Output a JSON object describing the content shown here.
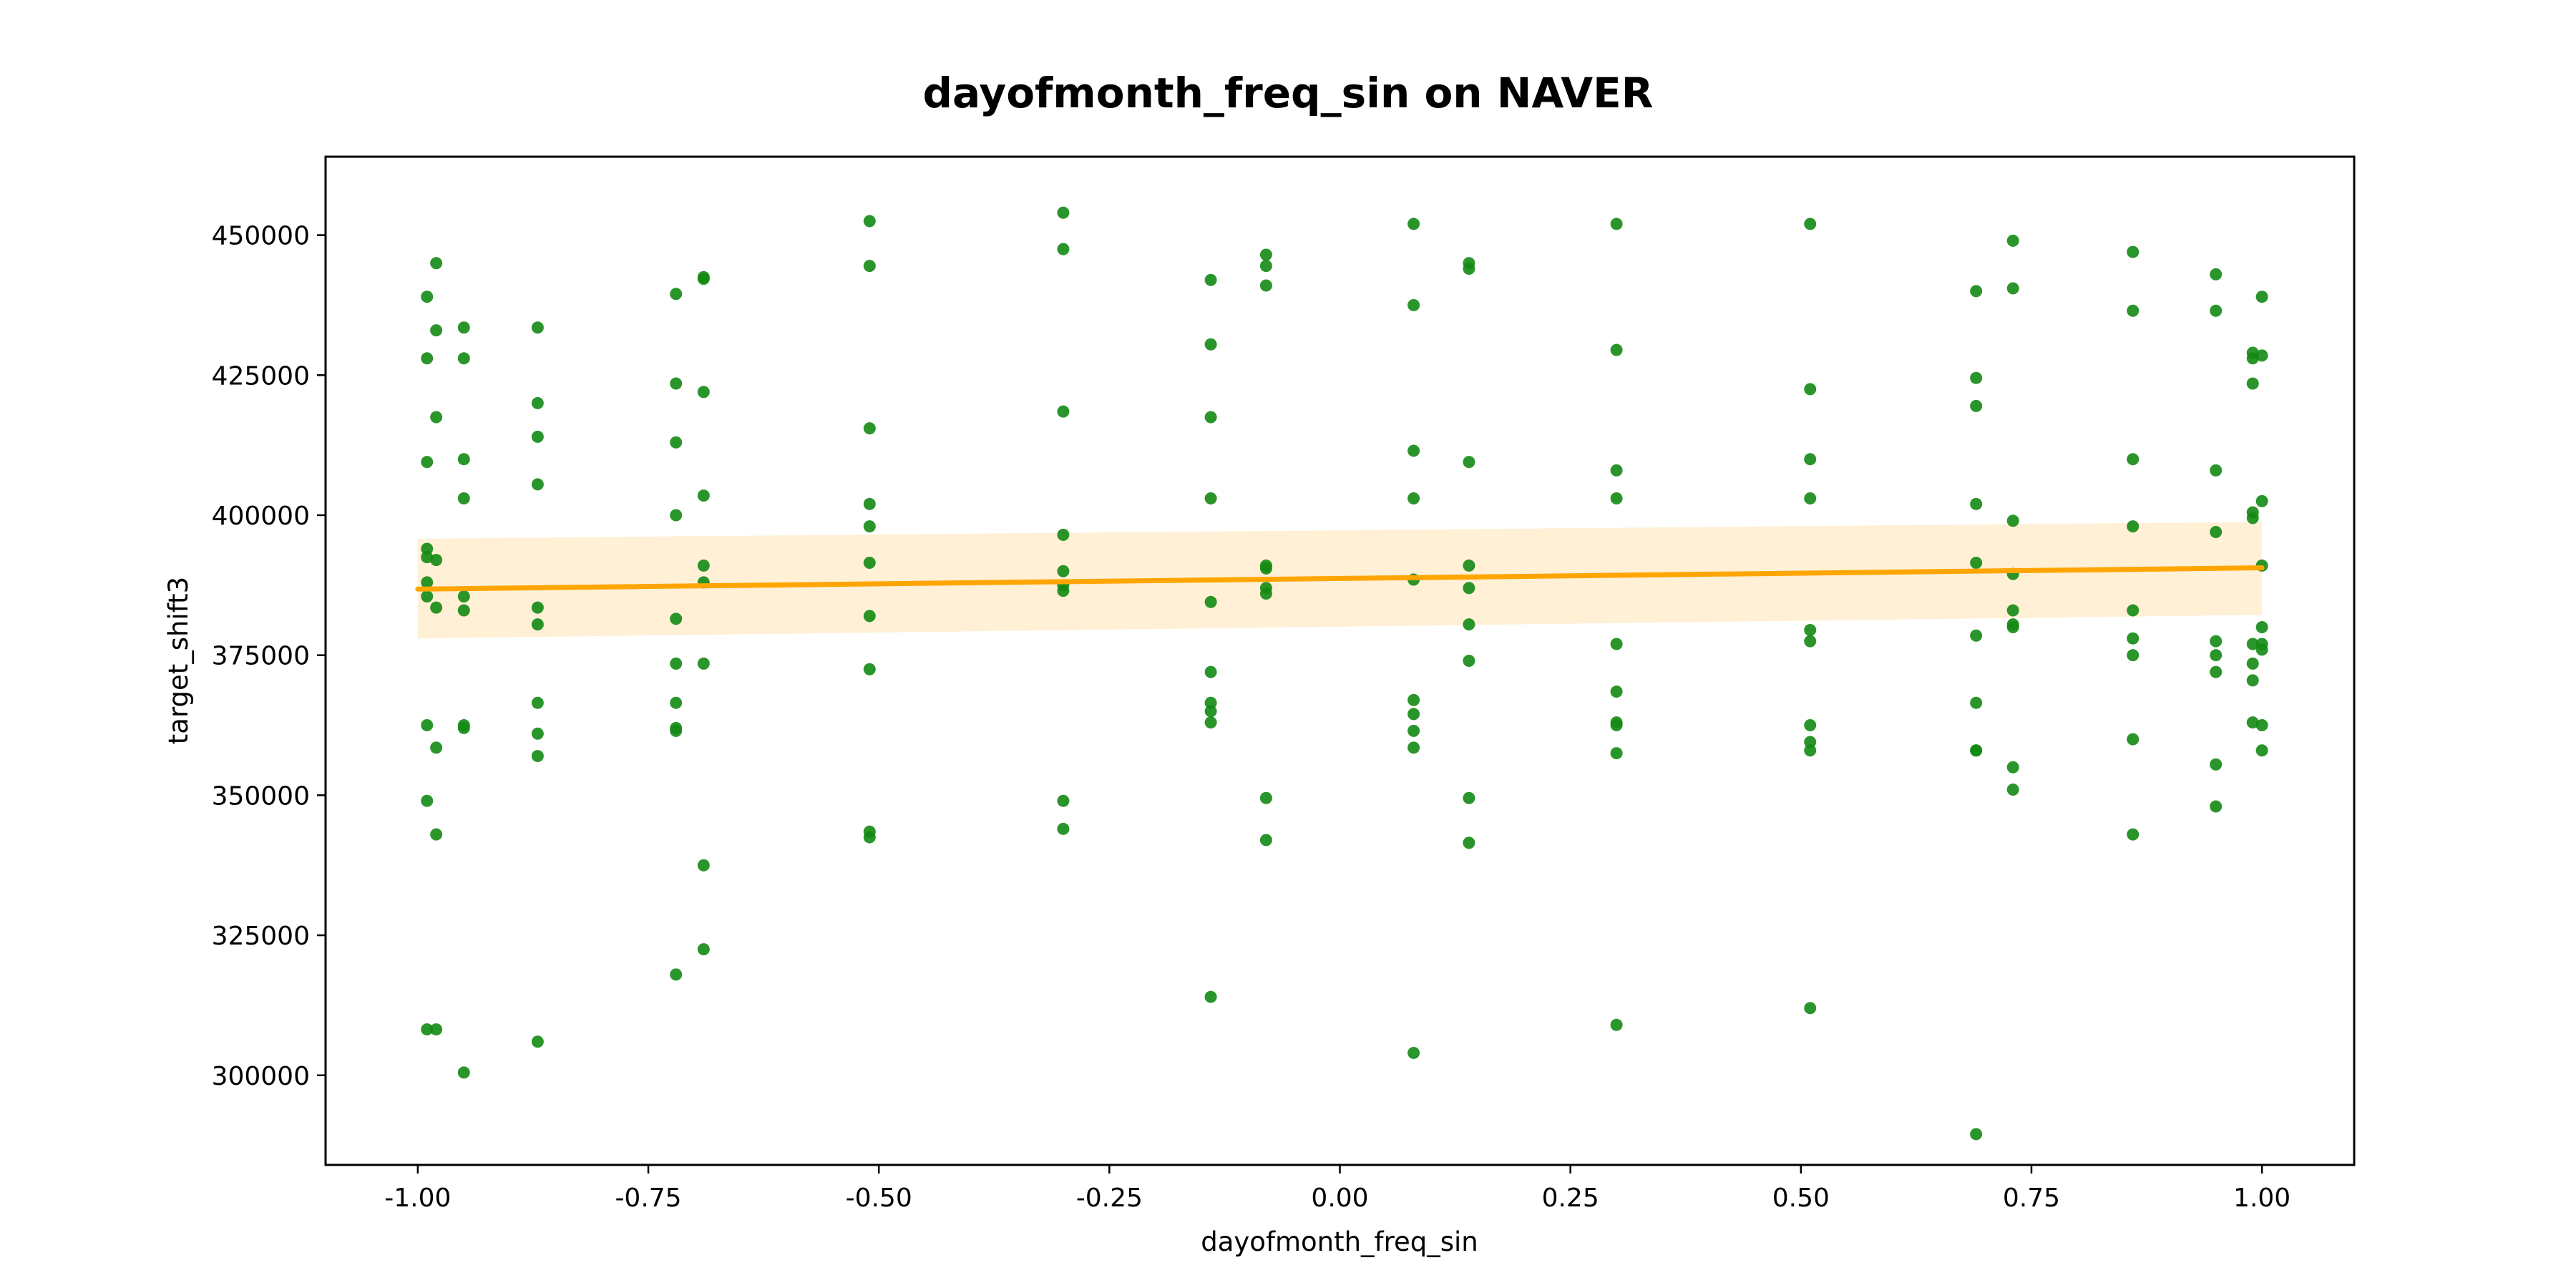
{
  "chart_data": {
    "type": "scatter",
    "title": "dayofmonth_freq_sin on NAVER",
    "xlabel": "dayofmonth_freq_sin",
    "ylabel": "target_shift3",
    "xlim": [
      -1.1,
      1.1
    ],
    "ylim": [
      284000,
      464000
    ],
    "x_ticks": [
      -1.0,
      -0.75,
      -0.5,
      -0.25,
      0.0,
      0.25,
      0.5,
      0.75,
      1.0
    ],
    "x_tick_labels": [
      "-1.00",
      "-0.75",
      "-0.50",
      "-0.25",
      "0.00",
      "0.25",
      "0.50",
      "0.75",
      "1.00"
    ],
    "y_ticks": [
      300000,
      325000,
      350000,
      375000,
      400000,
      425000,
      450000
    ],
    "y_tick_labels": [
      "300000",
      "325000",
      "350000",
      "375000",
      "400000",
      "425000",
      "450000"
    ],
    "grid": false,
    "colors": {
      "points": "#138a13",
      "regression_line": "#ffa500",
      "confidence_band": "#fff0d6"
    },
    "regression": {
      "x": [
        -1.0,
        1.0
      ],
      "y": [
        386800,
        390600
      ],
      "ci_upper": [
        395800,
        398800
      ],
      "ci_lower": [
        378000,
        382200
      ]
    },
    "points": [
      {
        "x": -0.99,
        "y": 439000
      },
      {
        "x": -0.99,
        "y": 428000
      },
      {
        "x": -0.99,
        "y": 409500
      },
      {
        "x": -0.99,
        "y": 394000
      },
      {
        "x": -0.99,
        "y": 392500
      },
      {
        "x": -0.99,
        "y": 388000
      },
      {
        "x": -0.99,
        "y": 385500
      },
      {
        "x": -0.99,
        "y": 362500
      },
      {
        "x": -0.99,
        "y": 349000
      },
      {
        "x": -0.99,
        "y": 308200
      },
      {
        "x": -0.98,
        "y": 445000
      },
      {
        "x": -0.98,
        "y": 433000
      },
      {
        "x": -0.98,
        "y": 417500
      },
      {
        "x": -0.98,
        "y": 392000
      },
      {
        "x": -0.98,
        "y": 383500
      },
      {
        "x": -0.98,
        "y": 358500
      },
      {
        "x": -0.98,
        "y": 343000
      },
      {
        "x": -0.98,
        "y": 308200
      },
      {
        "x": -0.95,
        "y": 433500
      },
      {
        "x": -0.95,
        "y": 428000
      },
      {
        "x": -0.95,
        "y": 410000
      },
      {
        "x": -0.95,
        "y": 403000
      },
      {
        "x": -0.95,
        "y": 385500
      },
      {
        "x": -0.95,
        "y": 383000
      },
      {
        "x": -0.95,
        "y": 362500
      },
      {
        "x": -0.95,
        "y": 362000
      },
      {
        "x": -0.95,
        "y": 300500
      },
      {
        "x": -0.87,
        "y": 433500
      },
      {
        "x": -0.87,
        "y": 420000
      },
      {
        "x": -0.87,
        "y": 414000
      },
      {
        "x": -0.87,
        "y": 405500
      },
      {
        "x": -0.87,
        "y": 383500
      },
      {
        "x": -0.87,
        "y": 380500
      },
      {
        "x": -0.87,
        "y": 366500
      },
      {
        "x": -0.87,
        "y": 361000
      },
      {
        "x": -0.87,
        "y": 357000
      },
      {
        "x": -0.87,
        "y": 306000
      },
      {
        "x": -0.72,
        "y": 439500
      },
      {
        "x": -0.72,
        "y": 423500
      },
      {
        "x": -0.72,
        "y": 413000
      },
      {
        "x": -0.72,
        "y": 400000
      },
      {
        "x": -0.72,
        "y": 381500
      },
      {
        "x": -0.72,
        "y": 373500
      },
      {
        "x": -0.72,
        "y": 366500
      },
      {
        "x": -0.72,
        "y": 362000
      },
      {
        "x": -0.72,
        "y": 361500
      },
      {
        "x": -0.72,
        "y": 318000
      },
      {
        "x": -0.69,
        "y": 442500
      },
      {
        "x": -0.69,
        "y": 442200
      },
      {
        "x": -0.69,
        "y": 422000
      },
      {
        "x": -0.69,
        "y": 403500
      },
      {
        "x": -0.69,
        "y": 391000
      },
      {
        "x": -0.69,
        "y": 388000
      },
      {
        "x": -0.69,
        "y": 373500
      },
      {
        "x": -0.69,
        "y": 337500
      },
      {
        "x": -0.69,
        "y": 322500
      },
      {
        "x": -0.51,
        "y": 452500
      },
      {
        "x": -0.51,
        "y": 444500
      },
      {
        "x": -0.51,
        "y": 415500
      },
      {
        "x": -0.51,
        "y": 402000
      },
      {
        "x": -0.51,
        "y": 398000
      },
      {
        "x": -0.51,
        "y": 391500
      },
      {
        "x": -0.51,
        "y": 382000
      },
      {
        "x": -0.51,
        "y": 372500
      },
      {
        "x": -0.51,
        "y": 343500
      },
      {
        "x": -0.51,
        "y": 342500
      },
      {
        "x": -0.3,
        "y": 454000
      },
      {
        "x": -0.3,
        "y": 447500
      },
      {
        "x": -0.3,
        "y": 418500
      },
      {
        "x": -0.3,
        "y": 396500
      },
      {
        "x": -0.3,
        "y": 390000
      },
      {
        "x": -0.3,
        "y": 387500
      },
      {
        "x": -0.3,
        "y": 386500
      },
      {
        "x": -0.3,
        "y": 349000
      },
      {
        "x": -0.3,
        "y": 344000
      },
      {
        "x": -0.14,
        "y": 442000
      },
      {
        "x": -0.14,
        "y": 430500
      },
      {
        "x": -0.14,
        "y": 417500
      },
      {
        "x": -0.14,
        "y": 403000
      },
      {
        "x": -0.14,
        "y": 384500
      },
      {
        "x": -0.14,
        "y": 372000
      },
      {
        "x": -0.14,
        "y": 366500
      },
      {
        "x": -0.14,
        "y": 365000
      },
      {
        "x": -0.14,
        "y": 363000
      },
      {
        "x": -0.14,
        "y": 314000
      },
      {
        "x": -0.08,
        "y": 446500
      },
      {
        "x": -0.08,
        "y": 444500
      },
      {
        "x": -0.08,
        "y": 441000
      },
      {
        "x": -0.08,
        "y": 391000
      },
      {
        "x": -0.08,
        "y": 390500
      },
      {
        "x": -0.08,
        "y": 387000
      },
      {
        "x": -0.08,
        "y": 386000
      },
      {
        "x": -0.08,
        "y": 349500
      },
      {
        "x": -0.08,
        "y": 342000
      },
      {
        "x": 0.08,
        "y": 452000
      },
      {
        "x": 0.08,
        "y": 437500
      },
      {
        "x": 0.08,
        "y": 411500
      },
      {
        "x": 0.08,
        "y": 403000
      },
      {
        "x": 0.08,
        "y": 388500
      },
      {
        "x": 0.08,
        "y": 367000
      },
      {
        "x": 0.08,
        "y": 364500
      },
      {
        "x": 0.08,
        "y": 361500
      },
      {
        "x": 0.08,
        "y": 358500
      },
      {
        "x": 0.08,
        "y": 304000
      },
      {
        "x": 0.14,
        "y": 445000
      },
      {
        "x": 0.14,
        "y": 444000
      },
      {
        "x": 0.14,
        "y": 409500
      },
      {
        "x": 0.14,
        "y": 391000
      },
      {
        "x": 0.14,
        "y": 387000
      },
      {
        "x": 0.14,
        "y": 380500
      },
      {
        "x": 0.14,
        "y": 374000
      },
      {
        "x": 0.14,
        "y": 349500
      },
      {
        "x": 0.14,
        "y": 341500
      },
      {
        "x": 0.3,
        "y": 452000
      },
      {
        "x": 0.3,
        "y": 429500
      },
      {
        "x": 0.3,
        "y": 408000
      },
      {
        "x": 0.3,
        "y": 403000
      },
      {
        "x": 0.3,
        "y": 377000
      },
      {
        "x": 0.3,
        "y": 368500
      },
      {
        "x": 0.3,
        "y": 363000
      },
      {
        "x": 0.3,
        "y": 362500
      },
      {
        "x": 0.3,
        "y": 357500
      },
      {
        "x": 0.3,
        "y": 309000
      },
      {
        "x": 0.51,
        "y": 452000
      },
      {
        "x": 0.51,
        "y": 422500
      },
      {
        "x": 0.51,
        "y": 410000
      },
      {
        "x": 0.51,
        "y": 403000
      },
      {
        "x": 0.51,
        "y": 379500
      },
      {
        "x": 0.51,
        "y": 377500
      },
      {
        "x": 0.51,
        "y": 362500
      },
      {
        "x": 0.51,
        "y": 359500
      },
      {
        "x": 0.51,
        "y": 358000
      },
      {
        "x": 0.51,
        "y": 312000
      },
      {
        "x": 0.69,
        "y": 440000
      },
      {
        "x": 0.69,
        "y": 424500
      },
      {
        "x": 0.69,
        "y": 419500
      },
      {
        "x": 0.69,
        "y": 402000
      },
      {
        "x": 0.69,
        "y": 391500
      },
      {
        "x": 0.69,
        "y": 378500
      },
      {
        "x": 0.69,
        "y": 366500
      },
      {
        "x": 0.69,
        "y": 358000
      },
      {
        "x": 0.69,
        "y": 358000
      },
      {
        "x": 0.69,
        "y": 289500
      },
      {
        "x": 0.73,
        "y": 449000
      },
      {
        "x": 0.73,
        "y": 440500
      },
      {
        "x": 0.73,
        "y": 399000
      },
      {
        "x": 0.73,
        "y": 389500
      },
      {
        "x": 0.73,
        "y": 383000
      },
      {
        "x": 0.73,
        "y": 380500
      },
      {
        "x": 0.73,
        "y": 380000
      },
      {
        "x": 0.73,
        "y": 355000
      },
      {
        "x": 0.73,
        "y": 351000
      },
      {
        "x": 0.86,
        "y": 447000
      },
      {
        "x": 0.86,
        "y": 436500
      },
      {
        "x": 0.86,
        "y": 410000
      },
      {
        "x": 0.86,
        "y": 398000
      },
      {
        "x": 0.86,
        "y": 383000
      },
      {
        "x": 0.86,
        "y": 378000
      },
      {
        "x": 0.86,
        "y": 375000
      },
      {
        "x": 0.86,
        "y": 360000
      },
      {
        "x": 0.86,
        "y": 343000
      },
      {
        "x": 0.95,
        "y": 443000
      },
      {
        "x": 0.95,
        "y": 436500
      },
      {
        "x": 0.95,
        "y": 408000
      },
      {
        "x": 0.95,
        "y": 397000
      },
      {
        "x": 0.95,
        "y": 377500
      },
      {
        "x": 0.95,
        "y": 375000
      },
      {
        "x": 0.95,
        "y": 372000
      },
      {
        "x": 0.95,
        "y": 355500
      },
      {
        "x": 0.95,
        "y": 348000
      },
      {
        "x": 0.99,
        "y": 429000
      },
      {
        "x": 0.99,
        "y": 428000
      },
      {
        "x": 0.99,
        "y": 423500
      },
      {
        "x": 0.99,
        "y": 400500
      },
      {
        "x": 0.99,
        "y": 399500
      },
      {
        "x": 0.99,
        "y": 377000
      },
      {
        "x": 0.99,
        "y": 373500
      },
      {
        "x": 0.99,
        "y": 370500
      },
      {
        "x": 0.99,
        "y": 363000
      },
      {
        "x": 1.0,
        "y": 439000
      },
      {
        "x": 1.0,
        "y": 428500
      },
      {
        "x": 1.0,
        "y": 402500
      },
      {
        "x": 1.0,
        "y": 391000
      },
      {
        "x": 1.0,
        "y": 380000
      },
      {
        "x": 1.0,
        "y": 377000
      },
      {
        "x": 1.0,
        "y": 376000
      },
      {
        "x": 1.0,
        "y": 362500
      },
      {
        "x": 1.0,
        "y": 358000
      }
    ]
  }
}
